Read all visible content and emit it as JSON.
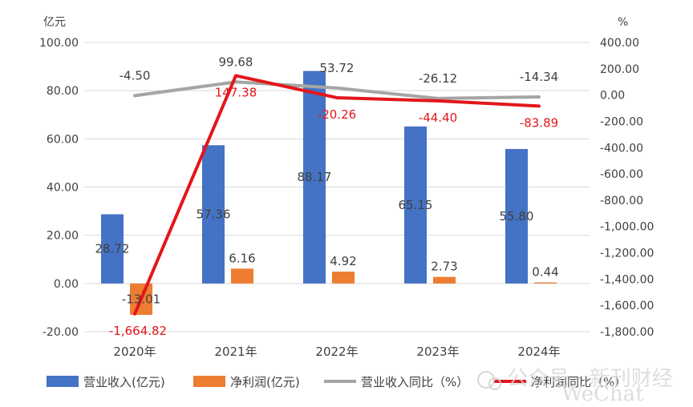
{
  "chart_data": {
    "type": "bar",
    "left_unit": "亿元",
    "right_unit": "%",
    "categories": [
      "2020年",
      "2021年",
      "2022年",
      "2023年",
      "2024年"
    ],
    "left_axis": {
      "range": [
        -20,
        100
      ],
      "ticks": [
        -20,
        0,
        20,
        40,
        60,
        80,
        100
      ],
      "tick_labels": [
        "-20.00",
        "0.00",
        "20.00",
        "40.00",
        "60.00",
        "80.00",
        "100.00"
      ]
    },
    "right_axis": {
      "range": [
        -1800,
        400
      ],
      "ticks": [
        -1800,
        -1600,
        -1400,
        -1200,
        -1000,
        -800,
        -600,
        -400,
        -200,
        0,
        200,
        400
      ],
      "tick_labels": [
        "-1,800.00",
        "-1,600.00",
        "-1,400.00",
        "-1,200.00",
        "-1,000.00",
        "-800.00",
        "-600.00",
        "-400.00",
        "-200.00",
        "0.00",
        "200.00",
        "400.00"
      ]
    },
    "grid": true,
    "legend_position": "bottom",
    "series": [
      {
        "name": "营业收入(亿元)",
        "kind": "bar",
        "axis": "left",
        "color": "#4472c4",
        "values": [
          28.72,
          57.36,
          88.17,
          65.15,
          55.8
        ],
        "labels": [
          "28.72",
          "57.36",
          "88.17",
          "65.15",
          "55.80"
        ]
      },
      {
        "name": "净利润(亿元)",
        "kind": "bar",
        "axis": "left",
        "color": "#ed7d31",
        "values": [
          -13.01,
          6.16,
          4.92,
          2.73,
          0.44
        ],
        "labels": [
          "-13.01",
          "6.16",
          "4.92",
          "2.73",
          "0.44"
        ]
      },
      {
        "name": "营业收入同比（%）",
        "kind": "line",
        "axis": "right",
        "color": "#a5a5a5",
        "values": [
          -4.5,
          99.68,
          53.72,
          -26.12,
          -14.34
        ],
        "labels": [
          "-4.50",
          "99.68",
          "53.72",
          "-26.12",
          "-14.34"
        ]
      },
      {
        "name": "净利润同比（%）",
        "kind": "line",
        "axis": "right",
        "color": "#e3161a",
        "values": [
          -1664.82,
          147.38,
          -20.26,
          -44.4,
          -83.89
        ],
        "labels": [
          "-1,664.82",
          "147.38",
          "-20.26",
          "-44.40",
          "-83.89"
        ]
      }
    ]
  },
  "watermark": {
    "text": "公众号 · 新刊财经",
    "latin": "WeChat"
  }
}
